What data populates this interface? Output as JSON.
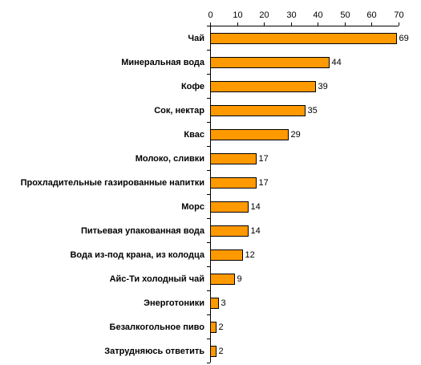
{
  "chart_data": {
    "type": "bar",
    "orientation": "horizontal",
    "title": "",
    "xlabel": "",
    "ylabel": "",
    "xlim": [
      0,
      70
    ],
    "x_ticks": [
      0,
      10,
      20,
      30,
      40,
      50,
      60,
      70
    ],
    "x_axis_position": "top",
    "grid": false,
    "legend": "none",
    "bar_color": "#FF9900",
    "bar_edge_color": "#000000",
    "categories": [
      "Чай",
      "Минеральная вода",
      "Кофе",
      "Сок, нектар",
      "Квас",
      "Молоко, сливки",
      "Прохладительные газированные напитки",
      "Морс",
      "Питьевая упакованная вода",
      "Вода из-под крана, из колодца",
      "Айс-Ти холодный чай",
      "Энерготоники",
      "Безалкогольное пиво",
      "Затрудняюсь ответить"
    ],
    "values": [
      69,
      44,
      39,
      35,
      29,
      17,
      17,
      14,
      14,
      12,
      9,
      3,
      2,
      2
    ]
  }
}
